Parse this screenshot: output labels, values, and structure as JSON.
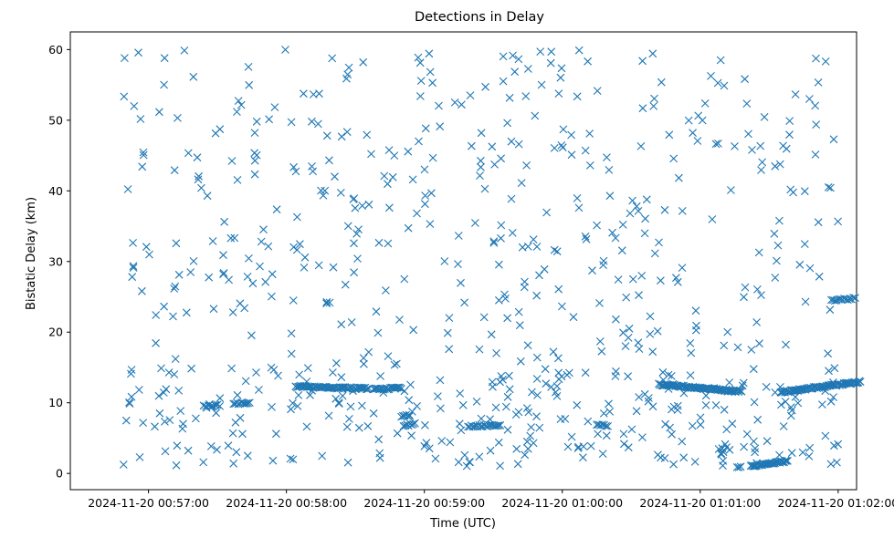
{
  "chart_data": {
    "type": "scatter",
    "title": "Detections in Delay",
    "xlabel": "Time (UTC)",
    "ylabel": "Bistatic Delay (km)",
    "x_start": "2024-11-20 00:57:00",
    "xlim_seconds": [
      -34,
      308
    ],
    "ylim": [
      -2.3,
      62.5
    ],
    "x_ticks": [
      {
        "value": 0,
        "label": "2024-11-20 00:57:00"
      },
      {
        "value": 60,
        "label": "2024-11-20 00:58:00"
      },
      {
        "value": 120,
        "label": "2024-11-20 00:59:00"
      },
      {
        "value": 180,
        "label": "2024-11-20 01:00:00"
      },
      {
        "value": 240,
        "label": "2024-11-20 01:01:00"
      },
      {
        "value": 300,
        "label": "2024-11-20 01:02:00"
      }
    ],
    "y_ticks": [
      0,
      10,
      20,
      30,
      40,
      50,
      60
    ],
    "grid": false,
    "marker": "x",
    "color": "#1f77b4",
    "seed": 7,
    "noise_per_second": 2.2,
    "tracks": [
      {
        "t": [
          24,
          31
        ],
        "d0": 9.6,
        "d1": 9.6,
        "step": 1.0
      },
      {
        "t": [
          37,
          44
        ],
        "d0": 9.9,
        "d1": 10.0,
        "step": 0.7
      },
      {
        "t": [
          64,
          96
        ],
        "d0": 12.3,
        "d1": 12.0,
        "step": 0.55
      },
      {
        "t": [
          98,
          110
        ],
        "d0": 11.9,
        "d1": 12.1,
        "step": 0.6
      },
      {
        "t": [
          110,
          114
        ],
        "d0": 8.1,
        "d1": 8.3,
        "step": 0.7
      },
      {
        "t": [
          111,
          116
        ],
        "d0": 6.8,
        "d1": 7.0,
        "step": 0.7
      },
      {
        "t": [
          139,
          153
        ],
        "d0": 6.7,
        "d1": 6.8,
        "step": 0.7
      },
      {
        "t": [
          195,
          200
        ],
        "d0": 6.8,
        "d1": 6.8,
        "step": 0.8
      },
      {
        "t": [
          222,
          258
        ],
        "d0": 12.6,
        "d1": 11.6,
        "step": 0.45
      },
      {
        "t": [
          256,
          258
        ],
        "d0": 0.9,
        "d1": 1.0,
        "step": 0.8
      },
      {
        "t": [
          262,
          278
        ],
        "d0": 1.0,
        "d1": 1.8,
        "step": 0.5
      },
      {
        "t": [
          275,
          310
        ],
        "d0": 11.5,
        "d1": 13.0,
        "step": 0.45
      },
      {
        "t": [
          297,
          308
        ],
        "d0": 24.5,
        "d1": 24.8,
        "step": 0.8
      }
    ]
  }
}
